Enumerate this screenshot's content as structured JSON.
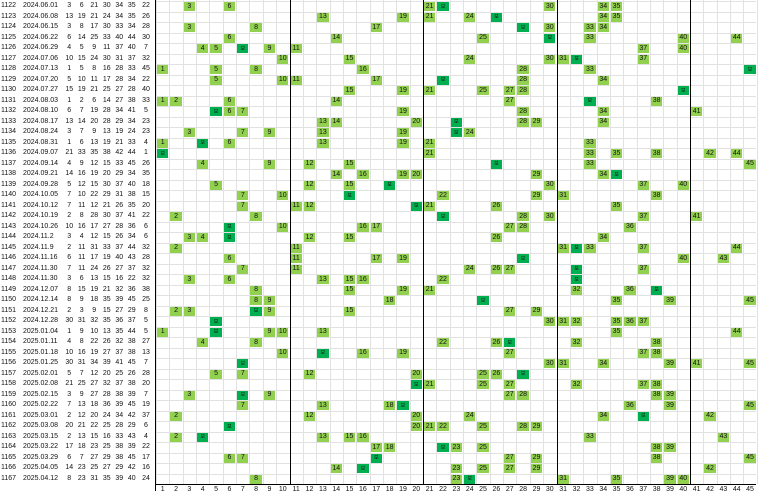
{
  "table": {
    "columns": [
      "1",
      "2",
      "3",
      "4",
      "5",
      "6",
      "7",
      "8",
      "9",
      "10",
      "11",
      "12",
      "13",
      "14",
      "15",
      "16",
      "17",
      "18",
      "19",
      "20",
      "21",
      "22",
      "23",
      "24",
      "25",
      "26",
      "27",
      "28",
      "29",
      "30",
      "31",
      "32",
      "33",
      "34",
      "35",
      "36",
      "37",
      "38",
      "39",
      "40",
      "41",
      "42",
      "43",
      "44",
      "45"
    ],
    "bonus_label": "보",
    "colors": {
      "hit": "#92d050",
      "bonus": "#00b050",
      "grid": "#e2e2e2",
      "divider": "#000000"
    },
    "rows": [
      {
        "issue": "1122",
        "date": "2024.06.01",
        "nums": [
          "3",
          "6",
          "21",
          "30",
          "34",
          "35"
        ],
        "bonus": "22",
        "hits": [
          3,
          6,
          21,
          30,
          34,
          35
        ],
        "b": 22
      },
      {
        "issue": "1123",
        "date": "2024.06.08",
        "nums": [
          "13",
          "19",
          "21",
          "24",
          "34",
          "35"
        ],
        "bonus": "26",
        "hits": [
          13,
          19,
          21,
          24,
          34,
          35
        ],
        "b": 26
      },
      {
        "issue": "1124",
        "date": "2024.06.15",
        "nums": [
          "3",
          "8",
          "17",
          "30",
          "33",
          "34"
        ],
        "bonus": "28",
        "hits": [
          3,
          8,
          17,
          30,
          33,
          34
        ],
        "b": 28
      },
      {
        "issue": "1125",
        "date": "2024.06.22",
        "nums": [
          "6",
          "14",
          "25",
          "33",
          "40",
          "44"
        ],
        "bonus": "30",
        "hits": [
          6,
          14,
          25,
          33,
          40,
          44
        ],
        "b": 30
      },
      {
        "issue": "1126",
        "date": "2024.06.29",
        "nums": [
          "4",
          "5",
          "9",
          "11",
          "37",
          "40"
        ],
        "bonus": "7",
        "hits": [
          4,
          5,
          9,
          11,
          37,
          40
        ],
        "b": 7
      },
      {
        "issue": "1127",
        "date": "2024.07.06",
        "nums": [
          "10",
          "15",
          "24",
          "30",
          "31",
          "37"
        ],
        "bonus": "32",
        "hits": [
          10,
          15,
          24,
          30,
          31,
          37
        ],
        "b": 32
      },
      {
        "issue": "1128",
        "date": "2024.07.13",
        "nums": [
          "1",
          "5",
          "8",
          "16",
          "28",
          "33"
        ],
        "bonus": "45",
        "hits": [
          1,
          5,
          8,
          16,
          28,
          33
        ],
        "b": 45
      },
      {
        "issue": "1129",
        "date": "2024.07.20",
        "nums": [
          "5",
          "10",
          "11",
          "17",
          "28",
          "34"
        ],
        "bonus": "22",
        "hits": [
          5,
          10,
          11,
          17,
          28,
          34
        ],
        "b": 22
      },
      {
        "issue": "1130",
        "date": "2024.07.27",
        "nums": [
          "15",
          "19",
          "21",
          "25",
          "27",
          "28"
        ],
        "bonus": "40",
        "hits": [
          15,
          19,
          21,
          25,
          27,
          28
        ],
        "b": 40
      },
      {
        "issue": "1131",
        "date": "2024.08.03",
        "nums": [
          "1",
          "2",
          "6",
          "14",
          "27",
          "38"
        ],
        "bonus": "33",
        "hits": [
          1,
          2,
          6,
          14,
          27,
          38
        ],
        "b": 33
      },
      {
        "issue": "1132",
        "date": "2024.08.10",
        "nums": [
          "6",
          "7",
          "19",
          "28",
          "34",
          "41"
        ],
        "bonus": "5",
        "hits": [
          6,
          7,
          19,
          28,
          34,
          41
        ],
        "b": 5
      },
      {
        "issue": "1133",
        "date": "2024.08.17",
        "nums": [
          "13",
          "14",
          "20",
          "28",
          "29",
          "34"
        ],
        "bonus": "23",
        "hits": [
          13,
          14,
          20,
          28,
          29,
          34
        ],
        "b": 23
      },
      {
        "issue": "1134",
        "date": "2024.08.24",
        "nums": [
          "3",
          "7",
          "9",
          "13",
          "19",
          "24"
        ],
        "bonus": "23",
        "hits": [
          3,
          7,
          9,
          13,
          19,
          24
        ],
        "b": 23
      },
      {
        "issue": "1135",
        "date": "2024.08.31",
        "nums": [
          "1",
          "6",
          "13",
          "19",
          "21",
          "33"
        ],
        "bonus": "4",
        "hits": [
          1,
          6,
          13,
          19,
          21,
          33
        ],
        "b": 4
      },
      {
        "issue": "1136",
        "date": "2024.09.07",
        "nums": [
          "21",
          "33",
          "35",
          "38",
          "42",
          "44"
        ],
        "bonus": "1",
        "hits": [
          21,
          33,
          35,
          38,
          42,
          44
        ],
        "b": 1
      },
      {
        "issue": "1137",
        "date": "2024.09.14",
        "nums": [
          "4",
          "9",
          "12",
          "15",
          "33",
          "45"
        ],
        "bonus": "26",
        "hits": [
          4,
          9,
          12,
          15,
          33,
          45
        ],
        "b": 26
      },
      {
        "issue": "1138",
        "date": "2024.09.21",
        "nums": [
          "14",
          "16",
          "19",
          "20",
          "29",
          "34"
        ],
        "bonus": "35",
        "hits": [
          14,
          16,
          19,
          20,
          29,
          34
        ],
        "b": 35
      },
      {
        "issue": "1139",
        "date": "2024.09.28",
        "nums": [
          "5",
          "12",
          "15",
          "30",
          "37",
          "40"
        ],
        "bonus": "18",
        "hits": [
          5,
          12,
          15,
          30,
          37,
          40
        ],
        "b": 18
      },
      {
        "issue": "1140",
        "date": "2024.10.05",
        "nums": [
          "7",
          "10",
          "22",
          "29",
          "31",
          "38"
        ],
        "bonus": "15",
        "hits": [
          7,
          10,
          22,
          29,
          31,
          38
        ],
        "b": 15
      },
      {
        "issue": "1141",
        "date": "2024.10.12",
        "nums": [
          "7",
          "11",
          "12",
          "21",
          "26",
          "35"
        ],
        "bonus": "20",
        "hits": [
          7,
          11,
          12,
          21,
          26,
          35
        ],
        "b": 20
      },
      {
        "issue": "1142",
        "date": "2024.10.19",
        "nums": [
          "2",
          "8",
          "28",
          "30",
          "37",
          "41"
        ],
        "bonus": "22",
        "hits": [
          2,
          8,
          28,
          30,
          37,
          41
        ],
        "b": 22
      },
      {
        "issue": "1143",
        "date": "2024.10.26",
        "nums": [
          "10",
          "16",
          "17",
          "27",
          "28",
          "36"
        ],
        "bonus": "6",
        "hits": [
          10,
          16,
          17,
          27,
          28,
          36
        ],
        "b": 6
      },
      {
        "issue": "1144",
        "date": "2024.11.2",
        "nums": [
          "3",
          "4",
          "12",
          "15",
          "26",
          "34"
        ],
        "bonus": "6",
        "hits": [
          3,
          4,
          12,
          15,
          26,
          34
        ],
        "b": 6
      },
      {
        "issue": "1145",
        "date": "2024.11.9",
        "nums": [
          "2",
          "11",
          "31",
          "33",
          "37",
          "44"
        ],
        "bonus": "32",
        "hits": [
          2,
          11,
          31,
          33,
          37,
          44
        ],
        "b": 32
      },
      {
        "issue": "1146",
        "date": "2024.11.16",
        "nums": [
          "6",
          "11",
          "17",
          "19",
          "40",
          "43"
        ],
        "bonus": "28",
        "hits": [
          6,
          11,
          17,
          19,
          40,
          43
        ],
        "b": 28
      },
      {
        "issue": "1147",
        "date": "2024.11.30",
        "nums": [
          "7",
          "11",
          "24",
          "26",
          "27",
          "37"
        ],
        "bonus": "32",
        "hits": [
          7,
          11,
          24,
          26,
          27,
          37
        ],
        "b": 32
      },
      {
        "issue": "1148",
        "date": "2024.11.30",
        "nums": [
          "3",
          "6",
          "13",
          "15",
          "16",
          "22"
        ],
        "bonus": "32",
        "hits": [
          3,
          6,
          13,
          15,
          16,
          22
        ],
        "b": 32
      },
      {
        "issue": "1149",
        "date": "2024.12.07",
        "nums": [
          "8",
          "15",
          "19",
          "21",
          "32",
          "36"
        ],
        "bonus": "38",
        "hits": [
          8,
          15,
          19,
          21,
          32,
          36
        ],
        "b": 38
      },
      {
        "issue": "1150",
        "date": "2024.12.14",
        "nums": [
          "8",
          "9",
          "18",
          "35",
          "39",
          "45"
        ],
        "bonus": "25",
        "hits": [
          8,
          9,
          18,
          35,
          39,
          45
        ],
        "b": 25
      },
      {
        "issue": "1151",
        "date": "2024.12.21",
        "nums": [
          "2",
          "3",
          "9",
          "15",
          "27",
          "29"
        ],
        "bonus": "8",
        "hits": [
          2,
          3,
          9,
          15,
          27,
          29
        ],
        "b": 8
      },
      {
        "issue": "1152",
        "date": "2024.12.28",
        "nums": [
          "30",
          "31",
          "32",
          "35",
          "36",
          "37"
        ],
        "bonus": "5",
        "hits": [
          30,
          31,
          32,
          35,
          36,
          37
        ],
        "b": 5
      },
      {
        "issue": "1153",
        "date": "2025.01.04",
        "nums": [
          "1",
          "9",
          "10",
          "13",
          "35",
          "44"
        ],
        "bonus": "5",
        "hits": [
          1,
          9,
          10,
          13,
          35,
          44
        ],
        "b": 5
      },
      {
        "issue": "1154",
        "date": "2025.01.11",
        "nums": [
          "4",
          "8",
          "22",
          "26",
          "32",
          "38"
        ],
        "bonus": "27",
        "hits": [
          4,
          8,
          22,
          26,
          32,
          38
        ],
        "b": 27
      },
      {
        "issue": "1155",
        "date": "2025.01.18",
        "nums": [
          "10",
          "16",
          "19",
          "27",
          "37",
          "38"
        ],
        "bonus": "13",
        "hits": [
          10,
          16,
          19,
          27,
          37,
          38
        ],
        "b": 13
      },
      {
        "issue": "1156",
        "date": "2025.01.25",
        "nums": [
          "30",
          "31",
          "34",
          "39",
          "41",
          "45"
        ],
        "bonus": "7",
        "hits": [
          30,
          31,
          34,
          39,
          41,
          45
        ],
        "b": 7
      },
      {
        "issue": "1157",
        "date": "2025.02.01",
        "nums": [
          "5",
          "7",
          "12",
          "20",
          "25",
          "26"
        ],
        "bonus": "28",
        "hits": [
          5,
          7,
          12,
          20,
          25,
          26
        ],
        "b": 28
      },
      {
        "issue": "1158",
        "date": "2025.02.08",
        "nums": [
          "21",
          "25",
          "27",
          "32",
          "37",
          "38"
        ],
        "bonus": "20",
        "hits": [
          21,
          25,
          27,
          32,
          37,
          38
        ],
        "b": 20
      },
      {
        "issue": "1159",
        "date": "2025.02.15",
        "nums": [
          "3",
          "9",
          "27",
          "28",
          "38",
          "39"
        ],
        "bonus": "7",
        "hits": [
          3,
          9,
          27,
          28,
          38,
          39
        ],
        "b": 7
      },
      {
        "issue": "1160",
        "date": "2025.02.22",
        "nums": [
          "7",
          "13",
          "18",
          "36",
          "39",
          "45"
        ],
        "bonus": "19",
        "hits": [
          7,
          13,
          18,
          36,
          39,
          45
        ],
        "b": 19
      },
      {
        "issue": "1161",
        "date": "2025.03.01",
        "nums": [
          "2",
          "12",
          "20",
          "24",
          "34",
          "42"
        ],
        "bonus": "37",
        "hits": [
          2,
          12,
          20,
          24,
          34,
          42
        ],
        "b": 37
      },
      {
        "issue": "1162",
        "date": "2025.03.08",
        "nums": [
          "20",
          "21",
          "22",
          "25",
          "28",
          "29"
        ],
        "bonus": "6",
        "hits": [
          20,
          21,
          22,
          25,
          28,
          29
        ],
        "b": 6
      },
      {
        "issue": "1163",
        "date": "2025.03.15",
        "nums": [
          "2",
          "13",
          "15",
          "16",
          "33",
          "43"
        ],
        "bonus": "4",
        "hits": [
          2,
          13,
          15,
          16,
          33,
          43
        ],
        "b": 4
      },
      {
        "issue": "1164",
        "date": "2025.03.22",
        "nums": [
          "17",
          "18",
          "23",
          "25",
          "38",
          "39"
        ],
        "bonus": "22",
        "hits": [
          17,
          18,
          23,
          25,
          38,
          39
        ],
        "b": 22
      },
      {
        "issue": "1165",
        "date": "2025.03.29",
        "nums": [
          "6",
          "7",
          "27",
          "29",
          "38",
          "45"
        ],
        "bonus": "17",
        "hits": [
          6,
          7,
          27,
          29,
          38,
          45
        ],
        "b": 17
      },
      {
        "issue": "1166",
        "date": "2025.04.05",
        "nums": [
          "14",
          "23",
          "25",
          "27",
          "29",
          "42"
        ],
        "bonus": "16",
        "hits": [
          14,
          23,
          25,
          27,
          29,
          42
        ],
        "b": 16
      },
      {
        "issue": "1167",
        "date": "2025.04.12",
        "nums": [
          "8",
          "23",
          "31",
          "35",
          "39",
          "40"
        ],
        "bonus": "24",
        "hits": [
          8,
          23,
          31,
          35,
          39,
          40
        ],
        "b": 24
      }
    ]
  }
}
